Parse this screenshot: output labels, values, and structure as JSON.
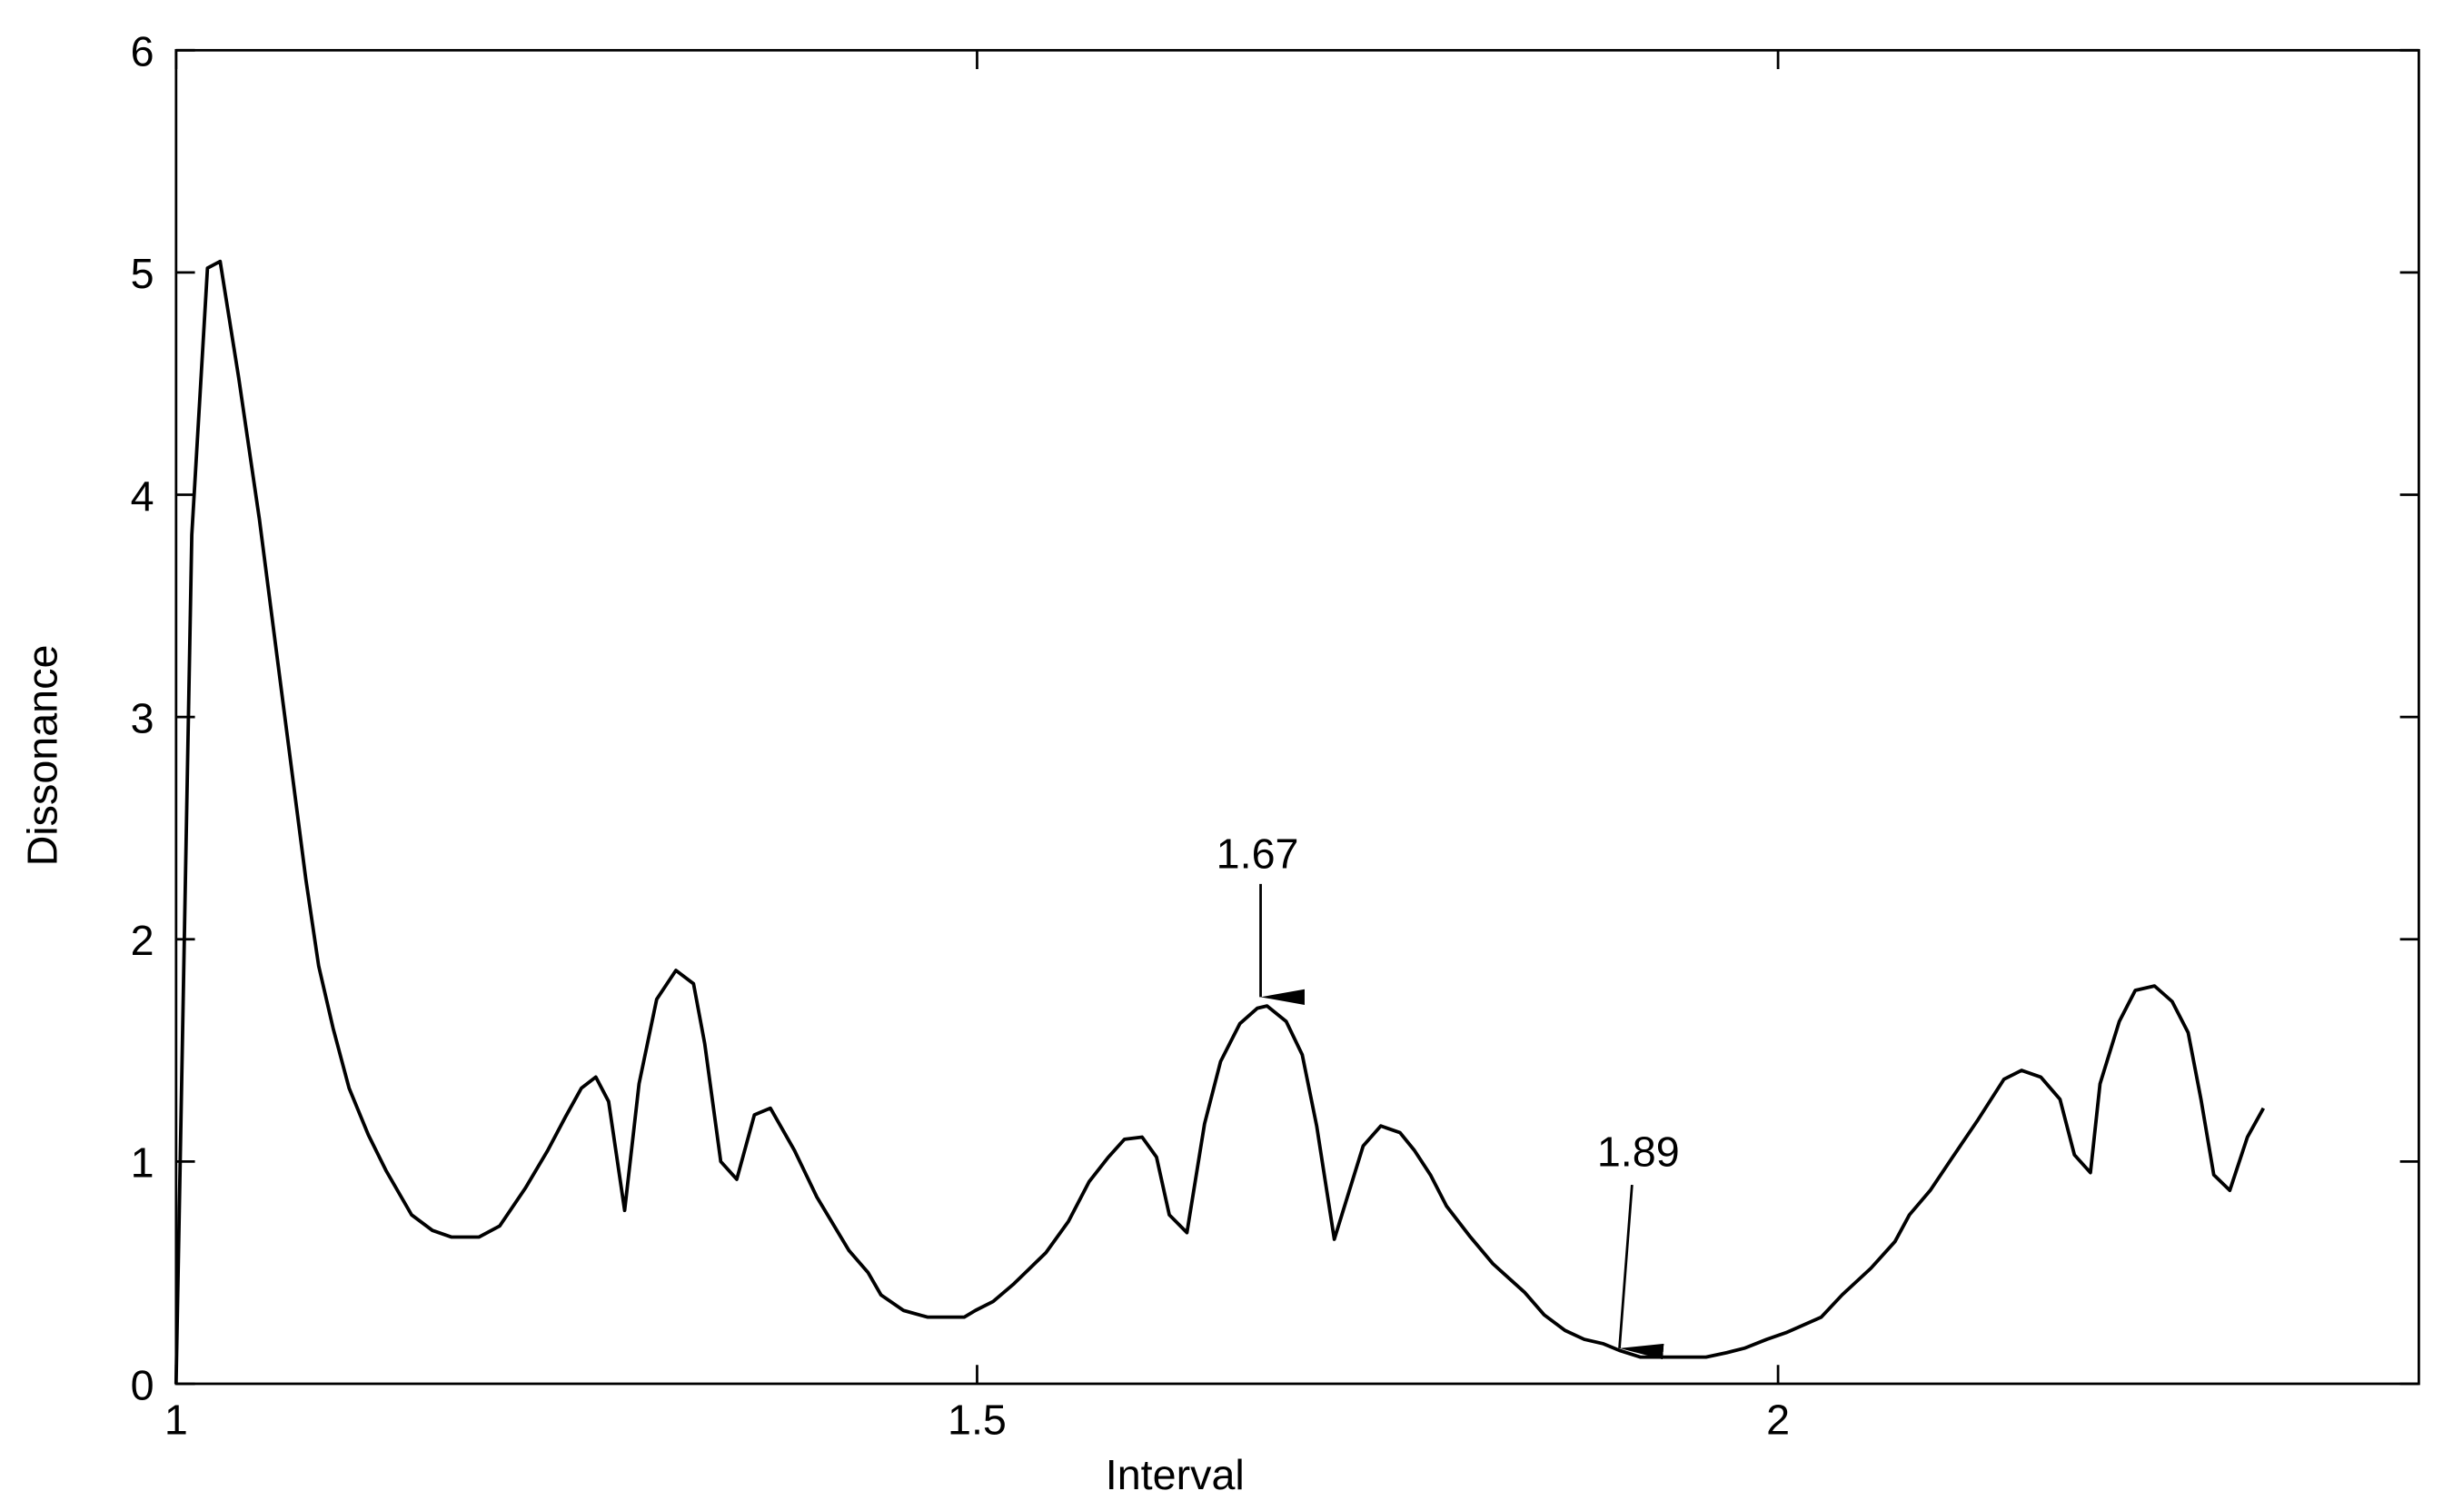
{
  "chart_data": {
    "type": "line",
    "x_label": "Interval",
    "y_label": "Dissonance",
    "xlim": [
      1,
      2.4
    ],
    "ylim": [
      0,
      6
    ],
    "xticks": [
      1,
      1.5,
      2
    ],
    "yticks": [
      0,
      1,
      2,
      3,
      4,
      5,
      6
    ],
    "grid": false,
    "series": [
      {
        "color": "#000000",
        "x": [
          1.0,
          1.0098,
          1.0196,
          1.0275,
          1.039,
          1.052,
          1.067,
          1.081,
          1.089,
          1.098,
          1.108,
          1.12,
          1.131,
          1.147,
          1.16,
          1.172,
          1.189,
          1.202,
          1.218,
          1.232,
          1.243,
          1.253,
          1.262,
          1.27,
          1.28,
          1.289,
          1.3,
          1.312,
          1.323,
          1.33,
          1.34,
          1.35,
          1.361,
          1.371,
          1.386,
          1.4,
          1.42,
          1.432,
          1.44,
          1.454,
          1.469,
          1.492,
          1.499,
          1.51,
          1.523,
          1.543,
          1.557,
          1.57,
          1.582,
          1.592,
          1.603,
          1.612,
          1.62,
          1.631,
          1.642,
          1.652,
          1.664,
          1.675,
          1.681,
          1.693,
          1.703,
          1.712,
          1.723,
          1.732,
          1.741,
          1.752,
          1.764,
          1.773,
          1.783,
          1.793,
          1.808,
          1.822,
          1.842,
          1.854,
          1.867,
          1.879,
          1.891,
          1.901,
          1.914,
          1.93,
          1.955,
          1.968,
          1.979,
          1.993,
          2.005,
          2.027,
          2.04,
          2.058,
          2.073,
          2.082,
          2.095,
          2.109,
          2.125,
          2.141,
          2.152,
          2.164,
          2.176,
          2.185,
          2.195,
          2.201,
          2.213,
          2.223,
          2.235,
          2.246,
          2.256,
          2.264,
          2.272,
          2.282,
          2.293,
          2.303
        ],
        "values": [
          0,
          3.82,
          5.02,
          5.05,
          4.53,
          3.89,
          3.05,
          2.27,
          1.88,
          1.6,
          1.33,
          1.12,
          0.96,
          0.76,
          0.69,
          0.66,
          0.66,
          0.71,
          0.88,
          1.05,
          1.2,
          1.33,
          1.38,
          1.27,
          0.78,
          1.35,
          1.73,
          1.86,
          1.8,
          1.53,
          1.0,
          0.92,
          1.21,
          1.24,
          1.05,
          0.84,
          0.6,
          0.5,
          0.4,
          0.33,
          0.3,
          0.3,
          0.33,
          0.37,
          0.45,
          0.59,
          0.73,
          0.91,
          1.02,
          1.1,
          1.11,
          1.02,
          0.76,
          0.68,
          1.17,
          1.45,
          1.62,
          1.69,
          1.7,
          1.63,
          1.48,
          1.16,
          0.65,
          0.86,
          1.07,
          1.16,
          1.13,
          1.05,
          0.94,
          0.8,
          0.66,
          0.54,
          0.41,
          0.31,
          0.24,
          0.2,
          0.18,
          0.15,
          0.12,
          0.12,
          0.12,
          0.14,
          0.16,
          0.2,
          0.23,
          0.3,
          0.4,
          0.52,
          0.64,
          0.76,
          0.87,
          1.02,
          1.19,
          1.37,
          1.41,
          1.38,
          1.28,
          1.03,
          0.95,
          1.35,
          1.63,
          1.77,
          1.79,
          1.72,
          1.58,
          1.28,
          0.94,
          0.87,
          1.11,
          1.24
        ]
      }
    ],
    "annotations": [
      {
        "text": "1.67",
        "x": 1.677,
        "y": 1.74
      },
      {
        "text": "1.89",
        "x": 1.901,
        "y": 0.16
      }
    ]
  }
}
